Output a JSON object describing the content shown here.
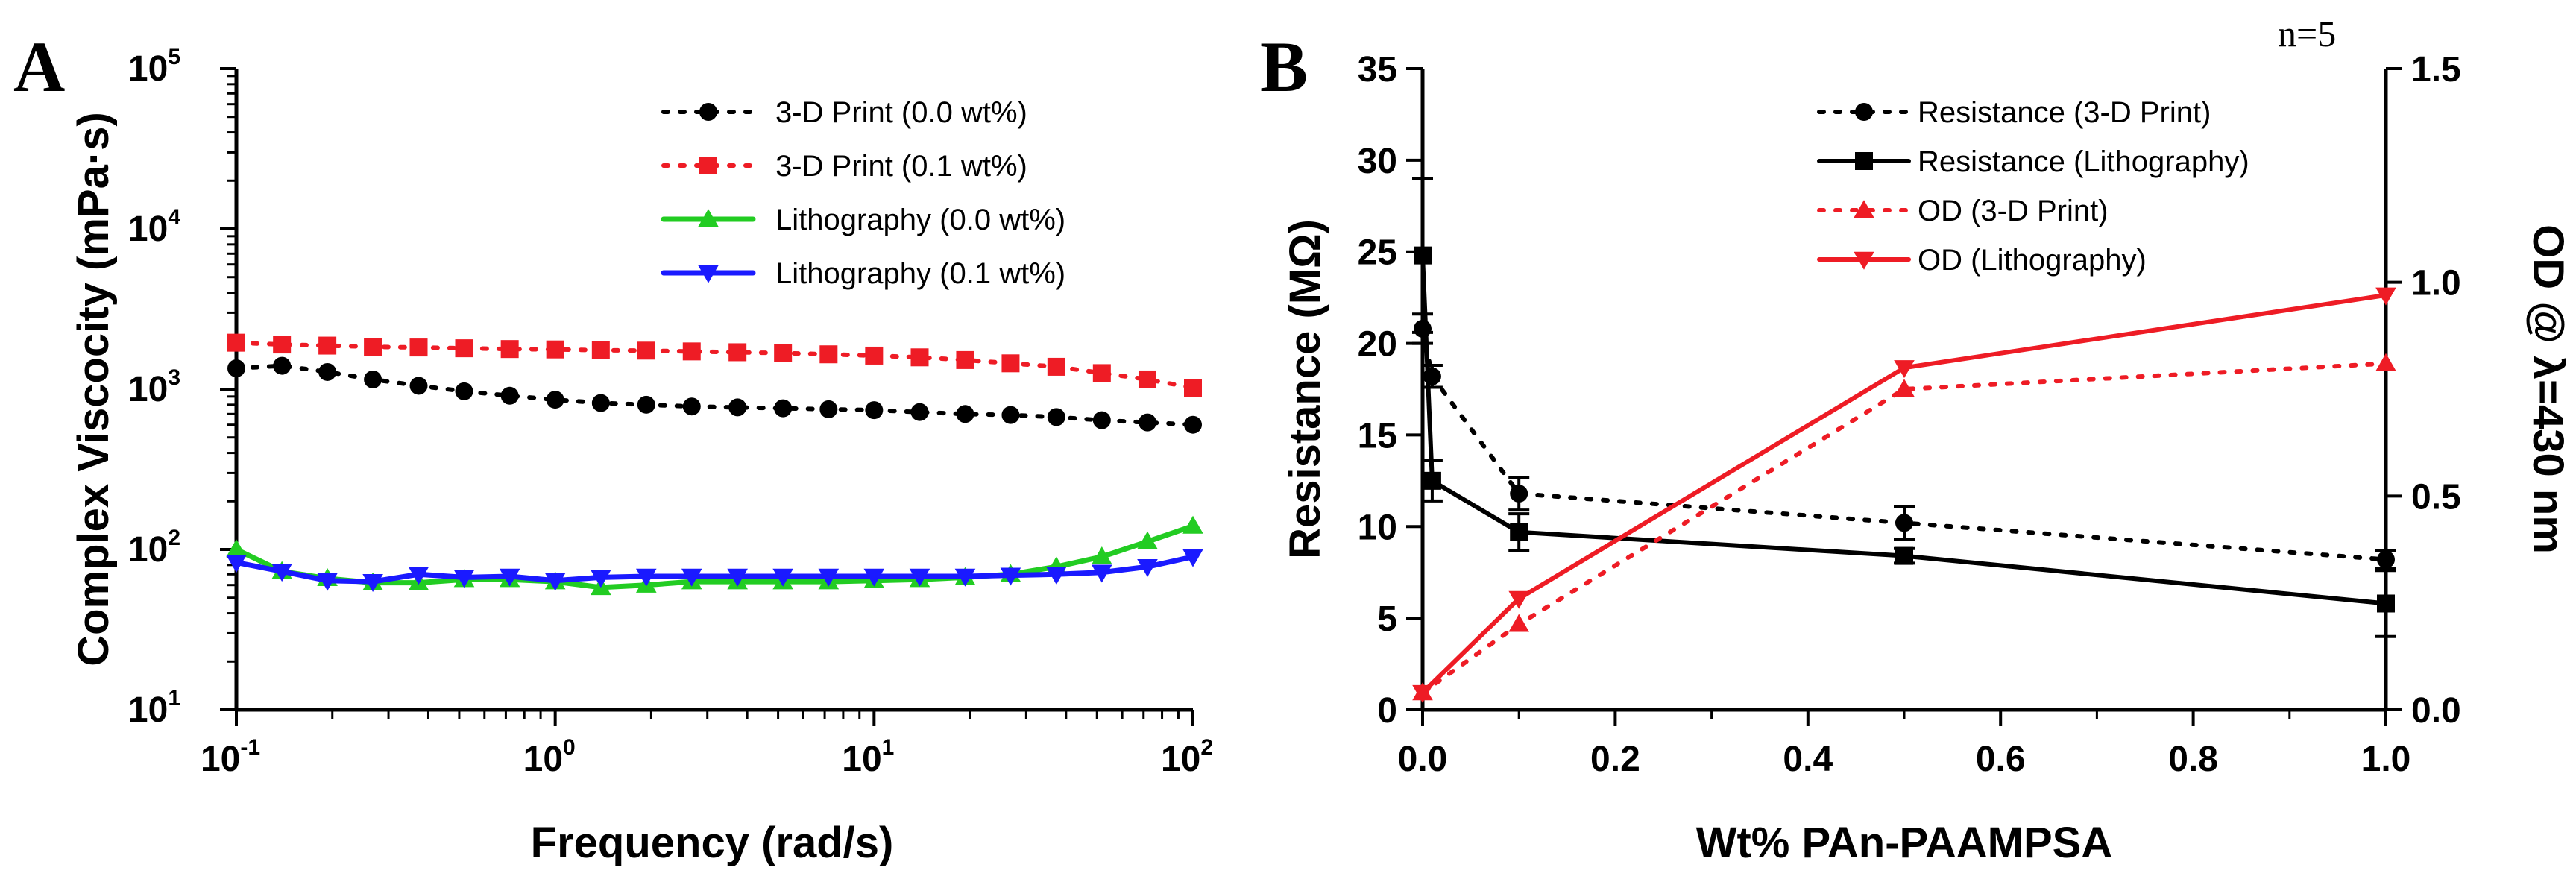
{
  "panels": [
    {
      "letter": "A"
    },
    {
      "letter": "B",
      "annotation": "n=5"
    }
  ],
  "chart_data": [
    {
      "type": "line",
      "panel": "A",
      "xlabel": "Frequency (rad/s)",
      "ylabel": "Complex Viscocity  (mPa·s)",
      "xscale": "log",
      "yscale": "log",
      "xlim": [
        0.1,
        100
      ],
      "ylim": [
        10,
        100000
      ],
      "x_tick_base": "10",
      "x_tick_exponents": [
        "-1",
        "0",
        "1",
        "2"
      ],
      "y_tick_base": "10",
      "y_tick_exponents": [
        "1",
        "2",
        "3",
        "4",
        "5"
      ],
      "legend_position": "top-right",
      "x": [
        0.1,
        0.139,
        0.193,
        0.268,
        0.373,
        0.518,
        0.72,
        1.0,
        1.39,
        1.93,
        2.68,
        3.73,
        5.18,
        7.2,
        10.0,
        13.9,
        19.3,
        26.8,
        37.3,
        51.8,
        72.0,
        100.0
      ],
      "series": [
        {
          "name": "3-D Print (0.0 wt%)",
          "color": "#000000",
          "marker": "circle",
          "line": "dotted",
          "values": [
            1350,
            1400,
            1280,
            1150,
            1050,
            970,
            910,
            860,
            820,
            800,
            780,
            770,
            760,
            750,
            740,
            720,
            700,
            690,
            670,
            640,
            620,
            600
          ]
        },
        {
          "name": "3-D Print (0.1 wt%)",
          "color": "#ee1c25",
          "marker": "square",
          "line": "dotted",
          "values": [
            1950,
            1900,
            1870,
            1840,
            1820,
            1800,
            1780,
            1770,
            1750,
            1740,
            1720,
            1700,
            1680,
            1650,
            1620,
            1580,
            1520,
            1450,
            1380,
            1260,
            1150,
            1020
          ]
        },
        {
          "name": "Lithography (0.0 wt%)",
          "color": "#22cc22",
          "marker": "triangle-up",
          "line": "solid",
          "values": [
            100,
            73,
            66,
            62,
            62,
            65,
            65,
            63,
            58,
            60,
            63,
            63,
            63,
            63,
            64,
            65,
            67,
            70,
            78,
            90,
            112,
            140
          ]
        },
        {
          "name": "Lithography (0.1 wt%)",
          "color": "#1a1aff",
          "marker": "triangle-down",
          "line": "solid",
          "values": [
            83,
            73,
            64,
            63,
            70,
            67,
            68,
            64,
            67,
            68,
            68,
            68,
            68,
            68,
            68,
            68,
            68,
            69,
            70,
            72,
            78,
            90
          ]
        }
      ]
    },
    {
      "type": "line",
      "panel": "B",
      "xlabel": "Wt% PAn-PAAMPSA",
      "ylabel": "Resistance (MΩ)",
      "y2label": "OD  @ λ=430 nm",
      "xlim": [
        0,
        1.0
      ],
      "ylim": [
        0,
        35
      ],
      "y2lim": [
        0,
        1.5
      ],
      "x_ticks": [
        "0.0",
        "0.2",
        "0.4",
        "0.6",
        "0.8",
        "1.0"
      ],
      "y_ticks": [
        "0",
        "5",
        "10",
        "15",
        "20",
        "25",
        "30",
        "35"
      ],
      "y2_ticks": [
        "0.0",
        "0.5",
        "1.0",
        "1.5"
      ],
      "legend_position": "top-right",
      "series": [
        {
          "name": "Resistance (3-D  Print)",
          "axis": "left",
          "color": "#000000",
          "marker": "circle",
          "line": "dotted",
          "x": [
            0.0,
            0.01,
            0.1,
            0.5,
            1.0
          ],
          "values": [
            20.8,
            18.2,
            11.8,
            10.2,
            8.2
          ],
          "errors": [
            0.8,
            0.6,
            0.9,
            0.9,
            0.5
          ]
        },
        {
          "name": "Resistance (Lithography)",
          "axis": "left",
          "color": "#000000",
          "marker": "square",
          "line": "solid",
          "x": [
            0.0,
            0.01,
            0.1,
            0.5,
            1.0
          ],
          "values": [
            24.8,
            12.5,
            9.7,
            8.4,
            5.8
          ],
          "errors": [
            4.2,
            1.1,
            1.0,
            0.4,
            1.8
          ]
        },
        {
          "name": "OD (3-D Print)",
          "axis": "right",
          "color": "#ee1c25",
          "marker": "triangle-up",
          "line": "dotted",
          "x": [
            0.0,
            0.1,
            0.5,
            1.0
          ],
          "values": [
            0.04,
            0.2,
            0.75,
            0.81
          ]
        },
        {
          "name": "OD (Lithography)",
          "axis": "right",
          "color": "#ee1c25",
          "marker": "triangle-down",
          "line": "solid",
          "x": [
            0.0,
            0.1,
            0.5,
            1.0
          ],
          "values": [
            0.04,
            0.26,
            0.8,
            0.97
          ]
        }
      ]
    }
  ]
}
